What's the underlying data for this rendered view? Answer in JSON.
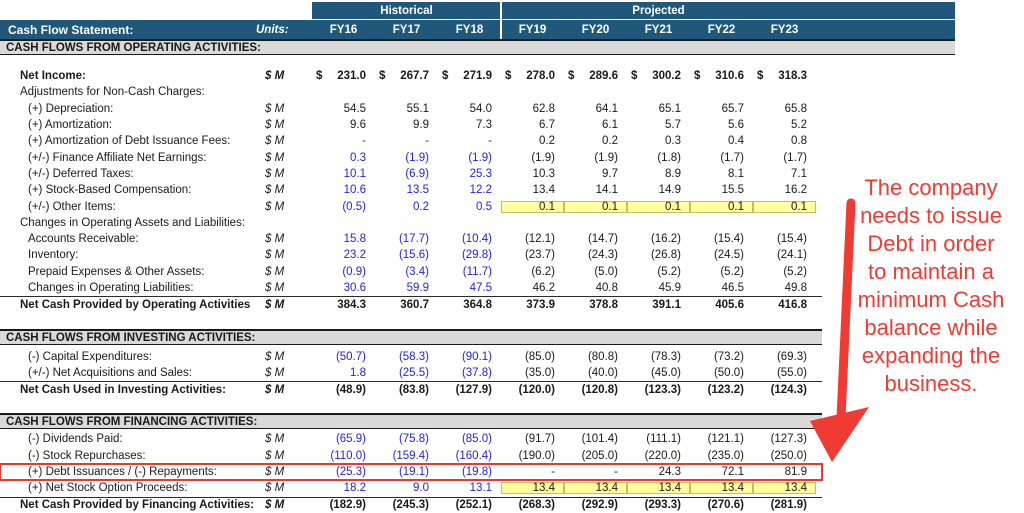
{
  "header": {
    "title": "Cash Flow Statement:",
    "units_label": "Units:",
    "groups": [
      {
        "label": "Historical",
        "cols": 3
      },
      {
        "label": "Projected",
        "cols": 5
      }
    ],
    "years": [
      "FY16",
      "FY17",
      "FY18",
      "FY19",
      "FY20",
      "FY21",
      "FY22",
      "FY23"
    ]
  },
  "colors": {
    "header_blue": "#1F587A",
    "section_gray": "#D9D9D9",
    "input_blue": "#2424DC",
    "highlight_yellow": "#FFFF9C",
    "annotation_red": "#EF3B33"
  },
  "rows": [
    {
      "type": "section",
      "label": "CASH FLOWS FROM OPERATING ACTIVITIES:",
      "wide": true
    },
    {
      "type": "spacer",
      "size": 13
    },
    {
      "type": "data",
      "label": "Net Income:",
      "indent": 1,
      "bold": true,
      "dollar": true,
      "units": "$ M",
      "histBlue": false,
      "hist": [
        "231.0",
        "267.7",
        "271.9"
      ],
      "proj": [
        "278.0",
        "289.6",
        "300.2",
        "310.6",
        "318.3"
      ]
    },
    {
      "type": "subheader",
      "label": "Adjustments for Non-Cash Charges:",
      "indent": 1
    },
    {
      "type": "data",
      "label": "(+) Depreciation:",
      "indent": 2,
      "units": "$ M",
      "histBlue": false,
      "hist": [
        "54.5",
        "55.1",
        "54.0"
      ],
      "proj": [
        "62.8",
        "64.1",
        "65.1",
        "65.7",
        "65.8"
      ]
    },
    {
      "type": "data",
      "label": "(+) Amortization:",
      "indent": 2,
      "units": "$ M",
      "histBlue": false,
      "hist": [
        "9.6",
        "9.9",
        "7.3"
      ],
      "proj": [
        "6.7",
        "6.1",
        "5.7",
        "5.6",
        "5.2"
      ]
    },
    {
      "type": "data",
      "label": "(+) Amortization of Debt Issuance Fees:",
      "indent": 2,
      "units": "$ M",
      "histBlue": true,
      "hist": [
        "-",
        "-",
        "-"
      ],
      "proj": [
        "0.2",
        "0.2",
        "0.3",
        "0.4",
        "0.8"
      ]
    },
    {
      "type": "data",
      "label": "(+/-) Finance Affiliate Net Earnings:",
      "indent": 2,
      "units": "$ M",
      "histBlue": true,
      "hist": [
        "0.3",
        "(1.9)",
        "(1.9)"
      ],
      "proj": [
        "(1.9)",
        "(1.9)",
        "(1.8)",
        "(1.7)",
        "(1.7)"
      ]
    },
    {
      "type": "data",
      "label": "(+/-) Deferred Taxes:",
      "indent": 2,
      "units": "$ M",
      "histBlue": true,
      "hist": [
        "10.1",
        "(6.9)",
        "25.3"
      ],
      "proj": [
        "10.3",
        "9.7",
        "8.9",
        "8.1",
        "7.1"
      ]
    },
    {
      "type": "data",
      "label": "(+) Stock-Based Compensation:",
      "indent": 2,
      "units": "$ M",
      "histBlue": true,
      "hist": [
        "10.6",
        "13.5",
        "12.2"
      ],
      "proj": [
        "13.4",
        "14.1",
        "14.9",
        "15.5",
        "16.2"
      ]
    },
    {
      "type": "data",
      "label": "(+/-) Other Items:",
      "indent": 2,
      "units": "$ M",
      "histBlue": true,
      "projYellow": true,
      "hist": [
        "(0.5)",
        "0.2",
        "0.5"
      ],
      "proj": [
        "0.1",
        "0.1",
        "0.1",
        "0.1",
        "0.1"
      ]
    },
    {
      "type": "subheader",
      "label": "Changes in Operating Assets and Liabilities:",
      "indent": 1
    },
    {
      "type": "data",
      "label": "Accounts Receivable:",
      "indent": 2,
      "units": "$ M",
      "histBlue": true,
      "hist": [
        "15.8",
        "(17.7)",
        "(10.4)"
      ],
      "proj": [
        "(12.1)",
        "(14.7)",
        "(16.2)",
        "(15.4)",
        "(15.4)"
      ]
    },
    {
      "type": "data",
      "label": "Inventory:",
      "indent": 2,
      "units": "$ M",
      "histBlue": true,
      "hist": [
        "23.2",
        "(15.6)",
        "(29.8)"
      ],
      "proj": [
        "(23.7)",
        "(24.3)",
        "(26.8)",
        "(24.5)",
        "(24.1)"
      ]
    },
    {
      "type": "data",
      "label": "Prepaid Expenses & Other Assets:",
      "indent": 2,
      "units": "$ M",
      "histBlue": true,
      "hist": [
        "(0.9)",
        "(3.4)",
        "(11.7)"
      ],
      "proj": [
        "(6.2)",
        "(5.0)",
        "(5.2)",
        "(5.2)",
        "(5.2)"
      ]
    },
    {
      "type": "data",
      "label": "Changes in Operating Liabilities:",
      "indent": 2,
      "units": "$ M",
      "histBlue": true,
      "hist": [
        "30.6",
        "59.9",
        "47.5"
      ],
      "proj": [
        "46.2",
        "40.8",
        "45.9",
        "46.5",
        "49.8"
      ]
    },
    {
      "type": "total",
      "label": "Net Cash Provided by Operating Activities",
      "indent": 1,
      "units": "$ M",
      "hist": [
        "384.3",
        "360.7",
        "364.8"
      ],
      "proj": [
        "373.9",
        "378.8",
        "391.1",
        "405.6",
        "416.8"
      ]
    },
    {
      "type": "spacer",
      "size": 17
    },
    {
      "type": "section",
      "label": "CASH FLOWS FROM INVESTING ACTIVITIES:"
    },
    {
      "type": "spacer",
      "size": 3
    },
    {
      "type": "data",
      "label": "(-) Capital Expenditures:",
      "indent": 2,
      "units": "$ M",
      "histBlue": true,
      "hist": [
        "(50.7)",
        "(58.3)",
        "(90.1)"
      ],
      "proj": [
        "(85.0)",
        "(80.8)",
        "(78.3)",
        "(73.2)",
        "(69.3)"
      ]
    },
    {
      "type": "data",
      "label": "(+/-) Net Acquisitions and Sales:",
      "indent": 2,
      "units": "$ M",
      "histBlue": true,
      "hist": [
        "1.8",
        "(25.5)",
        "(37.8)"
      ],
      "proj": [
        "(35.0)",
        "(40.0)",
        "(45.0)",
        "(50.0)",
        "(55.0)"
      ]
    },
    {
      "type": "total",
      "label": "Net Cash Used in Investing Activities:",
      "indent": 1,
      "units": "$ M",
      "hist": [
        "(48.9)",
        "(83.8)",
        "(127.9)"
      ],
      "proj": [
        "(120.0)",
        "(120.8)",
        "(123.3)",
        "(123.2)",
        "(124.3)"
      ]
    },
    {
      "type": "spacer",
      "size": 16
    },
    {
      "type": "section",
      "label": "CASH FLOWS FROM FINANCING ACTIVITIES:"
    },
    {
      "type": "spacer",
      "size": 2
    },
    {
      "type": "data",
      "label": "(-) Dividends Paid:",
      "indent": 2,
      "units": "$ M",
      "histBlue": true,
      "hist": [
        "(65.9)",
        "(75.8)",
        "(85.0)"
      ],
      "proj": [
        "(91.7)",
        "(101.4)",
        "(111.1)",
        "(121.1)",
        "(127.3)"
      ]
    },
    {
      "type": "data",
      "label": "(-) Stock Repurchases:",
      "indent": 2,
      "units": "$ M",
      "histBlue": true,
      "hist": [
        "(110.0)",
        "(159.4)",
        "(160.4)"
      ],
      "proj": [
        "(190.0)",
        "(205.0)",
        "(220.0)",
        "(235.0)",
        "(250.0)"
      ]
    },
    {
      "type": "data",
      "label": "(+) Debt Issuances / (-) Repayments:",
      "indent": 2,
      "units": "$ M",
      "histBlue": true,
      "redBox": true,
      "hist": [
        "(25.3)",
        "(19.1)",
        "(19.8)"
      ],
      "proj": [
        "-",
        "-",
        "24.3",
        "72.1",
        "81.9"
      ]
    },
    {
      "type": "data",
      "label": "(+) Net Stock Option Proceeds:",
      "indent": 2,
      "units": "$ M",
      "histBlue": true,
      "projYellow": true,
      "hist": [
        "18.2",
        "9.0",
        "13.1"
      ],
      "proj": [
        "13.4",
        "13.4",
        "13.4",
        "13.4",
        "13.4"
      ]
    },
    {
      "type": "total",
      "label": "Net Cash Provided by Financing Activities:",
      "indent": 1,
      "units": "$ M",
      "hist": [
        "(182.9)",
        "(245.3)",
        "(252.1)"
      ],
      "proj": [
        "(268.3)",
        "(292.9)",
        "(293.3)",
        "(270.6)",
        "(281.9)"
      ]
    }
  ],
  "annotation": {
    "text": "The company\nneeds to issue\nDebt in order\nto maintain a\nminimum Cash\nbalance while\nexpanding the\nbusiness."
  }
}
